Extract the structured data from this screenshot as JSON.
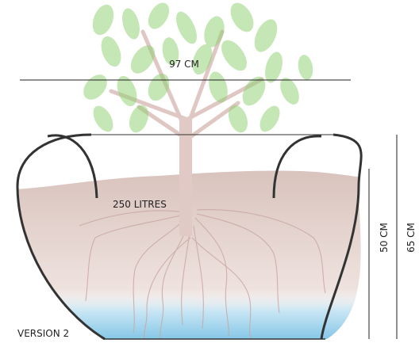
{
  "labels": {
    "width": "97 CM",
    "volume": "250 LITRES",
    "height_inner": "50 CM",
    "height_outer": "65 CM",
    "version": "VERSION 2"
  }
}
